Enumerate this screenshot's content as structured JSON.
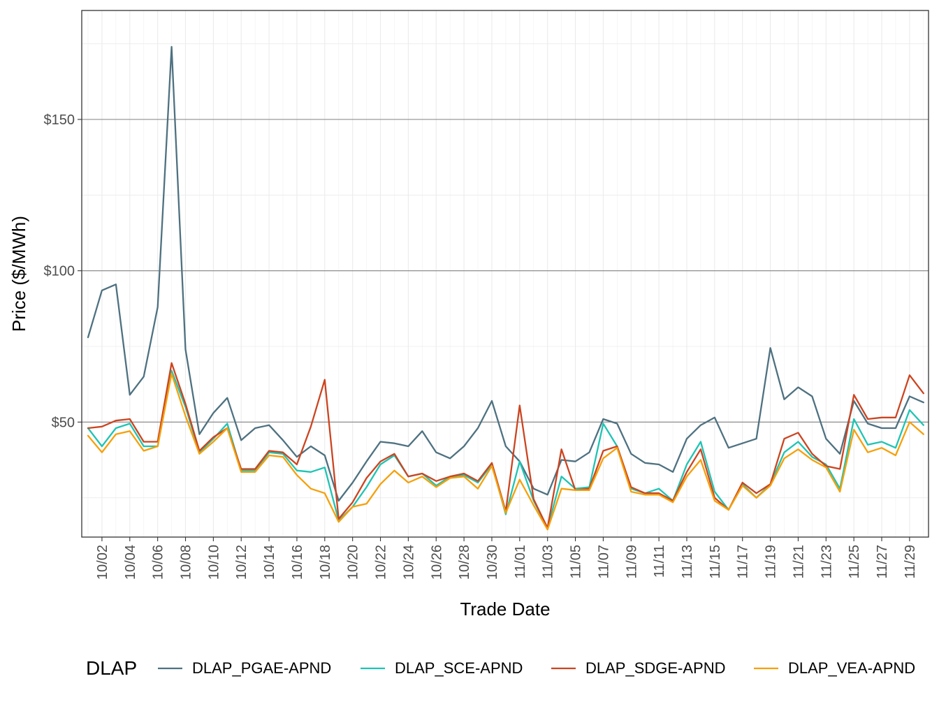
{
  "chart_data": {
    "type": "line",
    "xlabel": "Trade Date",
    "ylabel": "Price ($/MWh)",
    "ylim": [
      12,
      186
    ],
    "y_ticks": [
      {
        "value": 50,
        "label": "$50"
      },
      {
        "value": 100,
        "label": "$100"
      },
      {
        "value": 150,
        "label": "$150"
      }
    ],
    "x_tick_labels": [
      "10/02",
      "10/04",
      "10/06",
      "10/08",
      "10/10",
      "10/12",
      "10/14",
      "10/16",
      "10/18",
      "10/20",
      "10/22",
      "10/24",
      "10/26",
      "10/28",
      "10/30",
      "11/01",
      "11/03",
      "11/05",
      "11/07",
      "11/09",
      "11/11",
      "11/13",
      "11/15",
      "11/17",
      "11/19",
      "11/21",
      "11/23",
      "11/25",
      "11/27",
      "11/29"
    ],
    "x": [
      "10/01",
      "10/02",
      "10/03",
      "10/04",
      "10/05",
      "10/06",
      "10/07",
      "10/08",
      "10/09",
      "10/10",
      "10/11",
      "10/12",
      "10/13",
      "10/14",
      "10/15",
      "10/16",
      "10/17",
      "10/18",
      "10/19",
      "10/20",
      "10/21",
      "10/22",
      "10/23",
      "10/24",
      "10/25",
      "10/26",
      "10/27",
      "10/28",
      "10/29",
      "10/30",
      "10/31",
      "11/01",
      "11/02",
      "11/03",
      "11/04",
      "11/05",
      "11/06",
      "11/07",
      "11/08",
      "11/09",
      "11/10",
      "11/11",
      "11/12",
      "11/13",
      "11/14",
      "11/15",
      "11/16",
      "11/17",
      "11/18",
      "11/19",
      "11/20",
      "11/21",
      "11/22",
      "11/23",
      "11/24",
      "11/25",
      "11/26",
      "11/27",
      "11/28",
      "11/29",
      "11/30"
    ],
    "grid": true,
    "legend": {
      "title": "DLAP",
      "position": "bottom"
    },
    "series": [
      {
        "name": "DLAP_PGAE-APND",
        "color": "#4e7180",
        "values": [
          78,
          93.5,
          95.5,
          59,
          65,
          88,
          174,
          74,
          46,
          53,
          58,
          44,
          48,
          49,
          44,
          38.5,
          42,
          39,
          24,
          30,
          37,
          43.5,
          43,
          42,
          47,
          40,
          38,
          42,
          48,
          57,
          42,
          37,
          28,
          26,
          37.5,
          37,
          40,
          51,
          49.5,
          39.5,
          36.5,
          36,
          33.5,
          44.5,
          49,
          51.5,
          41.5,
          43,
          44.5,
          74.5,
          57.5,
          61.5,
          58.5,
          44.5,
          39.5,
          57,
          49.5,
          48,
          48,
          58.5,
          56.5
        ]
      },
      {
        "name": "DLAP_SCE-APND",
        "color": "#1ec4b3",
        "values": [
          48,
          42,
          48,
          49.5,
          42,
          42,
          67,
          55,
          40,
          44.5,
          49.5,
          34,
          34,
          40,
          39.5,
          34,
          33.5,
          35,
          17.5,
          22,
          28.5,
          36,
          39,
          32,
          33,
          29,
          32,
          32.5,
          30,
          36,
          19.5,
          37,
          24,
          15,
          32,
          28,
          28.5,
          49.5,
          42,
          28,
          26.5,
          28,
          24,
          36,
          43.5,
          27,
          21,
          29.5,
          25,
          29.5,
          40,
          43.5,
          38.5,
          36,
          28,
          51,
          42.5,
          43.5,
          41.5,
          54,
          49
        ]
      },
      {
        "name": "DLAP_SDGE-APND",
        "color": "#cc4420",
        "values": [
          48,
          48.5,
          50.5,
          51,
          43.5,
          43.5,
          69.5,
          56,
          40.5,
          45,
          48,
          34.5,
          34.5,
          40.5,
          40,
          36,
          48.5,
          64,
          18,
          23.5,
          31.5,
          37,
          39.5,
          32,
          33,
          30.5,
          32,
          33,
          30.5,
          36.5,
          20.5,
          55.5,
          24.5,
          15,
          41,
          27.5,
          28,
          40.5,
          42,
          28.5,
          26.5,
          26.5,
          24,
          33.5,
          41,
          25,
          21,
          30,
          26.5,
          29.5,
          44.5,
          46.5,
          39.5,
          35.5,
          34.5,
          59,
          51,
          51.5,
          51.5,
          65.5,
          59.5
        ]
      },
      {
        "name": "DLAP_VEA-APND",
        "color": "#f5a00a",
        "values": [
          45.5,
          40,
          46,
          47,
          40.5,
          42,
          66,
          52,
          39.5,
          43.5,
          48,
          33.5,
          33.5,
          39,
          38.5,
          32.5,
          28,
          26.5,
          17,
          22,
          23,
          29.5,
          34,
          30,
          32,
          28.5,
          31.5,
          32,
          28,
          35.5,
          20,
          31,
          22.5,
          14.5,
          28,
          27.5,
          27.5,
          38,
          41.5,
          27,
          26,
          26,
          23.5,
          32,
          37.5,
          24,
          21,
          29,
          25,
          29,
          38,
          41,
          37.5,
          35,
          27,
          47.5,
          40,
          41.5,
          39,
          50,
          46
        ]
      }
    ]
  }
}
